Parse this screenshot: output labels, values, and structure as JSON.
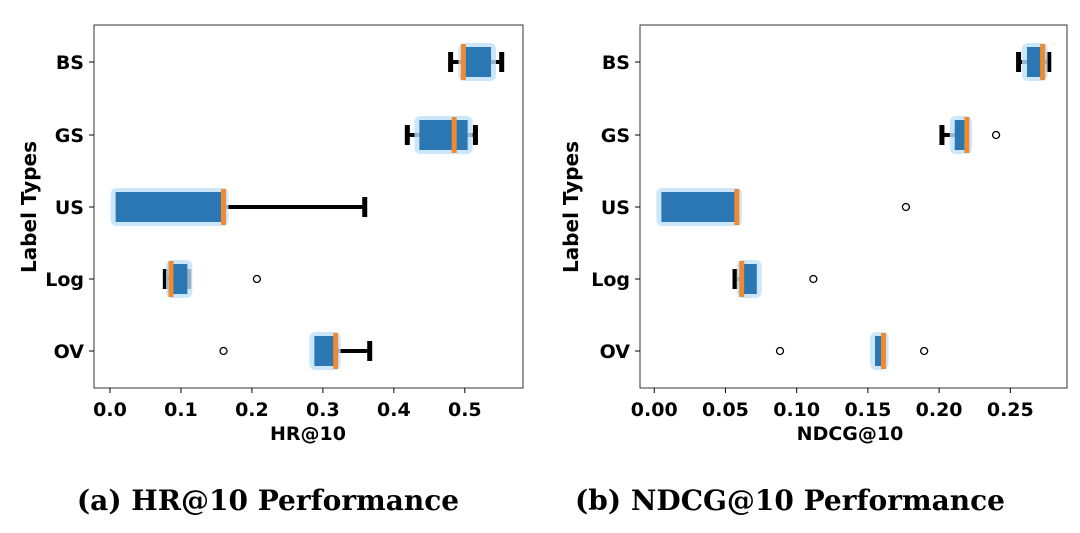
{
  "colors": {
    "box": "#2a77b4",
    "halo": "#bfe0fb",
    "median": "#f08a30",
    "whisker": "#000000"
  },
  "chart_data": [
    {
      "type": "boxplot-horizontal",
      "title": "(a) HR@10 Performance",
      "xlabel": "HR@10",
      "ylabel": "Label Types",
      "xlim": [
        -0.0225,
        0.582
      ],
      "xticks": [
        0.0,
        0.1,
        0.2,
        0.3,
        0.4,
        0.5
      ],
      "xtick_labels": [
        "0.0",
        "0.1",
        "0.2",
        "0.3",
        "0.4",
        "0.5"
      ],
      "categories": [
        "BS",
        "GS",
        "US",
        "Log",
        "OV"
      ],
      "boxes": [
        {
          "label": "BS",
          "whislo": 0.48,
          "q1": 0.498,
          "med": 0.498,
          "q3": 0.537,
          "whishi": 0.552,
          "fliers": []
        },
        {
          "label": "GS",
          "whislo": 0.419,
          "q1": 0.436,
          "med": 0.485,
          "q3": 0.504,
          "whishi": 0.515,
          "fliers": []
        },
        {
          "label": "US",
          "whislo": 0.008,
          "q1": 0.008,
          "med": 0.16,
          "q3": 0.16,
          "whishi": 0.359,
          "fliers": []
        },
        {
          "label": "Log",
          "whislo": 0.078,
          "q1": 0.086,
          "med": 0.086,
          "q3": 0.109,
          "whishi": 0.111,
          "fliers": [
            0.207
          ]
        },
        {
          "label": "OV",
          "whislo": 0.288,
          "q1": 0.288,
          "med": 0.318,
          "q3": 0.318,
          "whishi": 0.366,
          "fliers": [
            0.16
          ]
        }
      ]
    },
    {
      "type": "boxplot-horizontal",
      "title": "(b) NDCG@10 Performance",
      "xlabel": "NDCG@10",
      "ylabel": "Label Types",
      "xlim": [
        -0.01,
        0.2898
      ],
      "xticks": [
        0.0,
        0.05,
        0.1,
        0.15,
        0.2,
        0.25
      ],
      "xtick_labels": [
        "0.00",
        "0.05",
        "0.10",
        "0.15",
        "0.20",
        "0.25"
      ],
      "categories": [
        "BS",
        "GS",
        "US",
        "Log",
        "OV"
      ],
      "boxes": [
        {
          "label": "BS",
          "whislo": 0.2558,
          "q1": 0.2617,
          "med": 0.2727,
          "q3": 0.2727,
          "whishi": 0.277,
          "fliers": []
        },
        {
          "label": "GS",
          "whislo": 0.202,
          "q1": 0.211,
          "med": 0.2195,
          "q3": 0.2195,
          "whishi": 0.2195,
          "fliers": [
            0.24
          ]
        },
        {
          "label": "US",
          "whislo": 0.005,
          "q1": 0.005,
          "med": 0.058,
          "q3": 0.058,
          "whishi": 0.058,
          "fliers": [
            0.1767
          ]
        },
        {
          "label": "Log",
          "whislo": 0.0567,
          "q1": 0.0614,
          "med": 0.0614,
          "q3": 0.072,
          "whishi": 0.072,
          "fliers": [
            0.1117
          ]
        },
        {
          "label": "OV",
          "whislo": 0.155,
          "q1": 0.155,
          "med": 0.161,
          "q3": 0.161,
          "whishi": 0.161,
          "fliers": [
            0.0883,
            0.1895
          ]
        }
      ]
    }
  ]
}
